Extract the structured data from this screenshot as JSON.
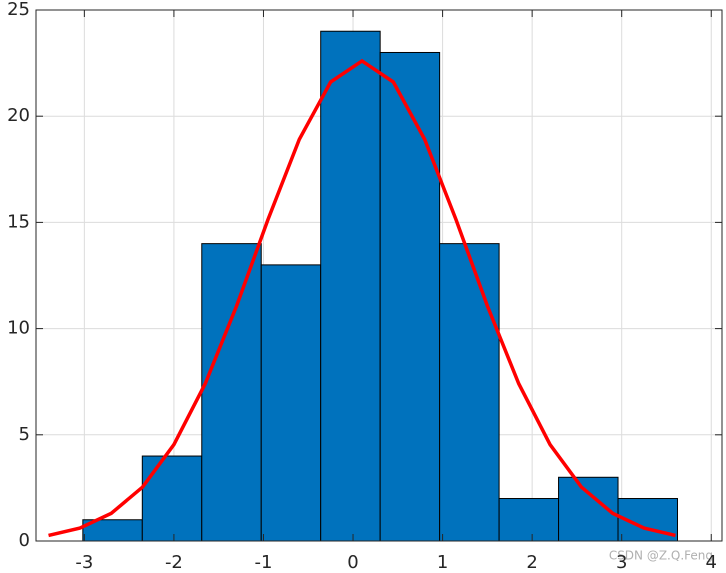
{
  "chart_data": {
    "type": "histogram",
    "bins": [
      -3.017,
      -2.353,
      -1.689,
      -1.025,
      -0.361,
      0.303,
      0.967,
      1.631,
      2.295,
      2.959,
      3.623
    ],
    "values": [
      1,
      4,
      14,
      13,
      24,
      23,
      14,
      2,
      3,
      2
    ],
    "color": "#0072bd",
    "overlays": [
      {
        "type": "line",
        "color": "#ff0000",
        "x": [
          -3.4,
          -3.05,
          -2.7,
          -2.35,
          -2.0,
          -1.65,
          -1.3,
          -0.95,
          -0.6,
          -0.25,
          0.1,
          0.45,
          0.8,
          1.15,
          1.5,
          1.85,
          2.2,
          2.55,
          2.9,
          3.25,
          3.6
        ],
        "values": [
          0.26,
          0.61,
          1.3,
          2.54,
          4.54,
          7.41,
          11.07,
          15.13,
          18.91,
          21.61,
          22.6,
          21.61,
          18.91,
          15.13,
          11.07,
          7.41,
          4.54,
          2.54,
          1.3,
          0.61,
          0.26
        ]
      }
    ],
    "xlim": [
      -3.54,
      4.12
    ],
    "ylim": [
      0,
      25
    ],
    "xticks": [
      -3,
      -2,
      -1,
      0,
      1,
      2,
      3,
      4
    ],
    "yticks": [
      0,
      5,
      10,
      15,
      20,
      25
    ],
    "grid": true,
    "watermark": "CSDN @Z.Q.Feng"
  }
}
